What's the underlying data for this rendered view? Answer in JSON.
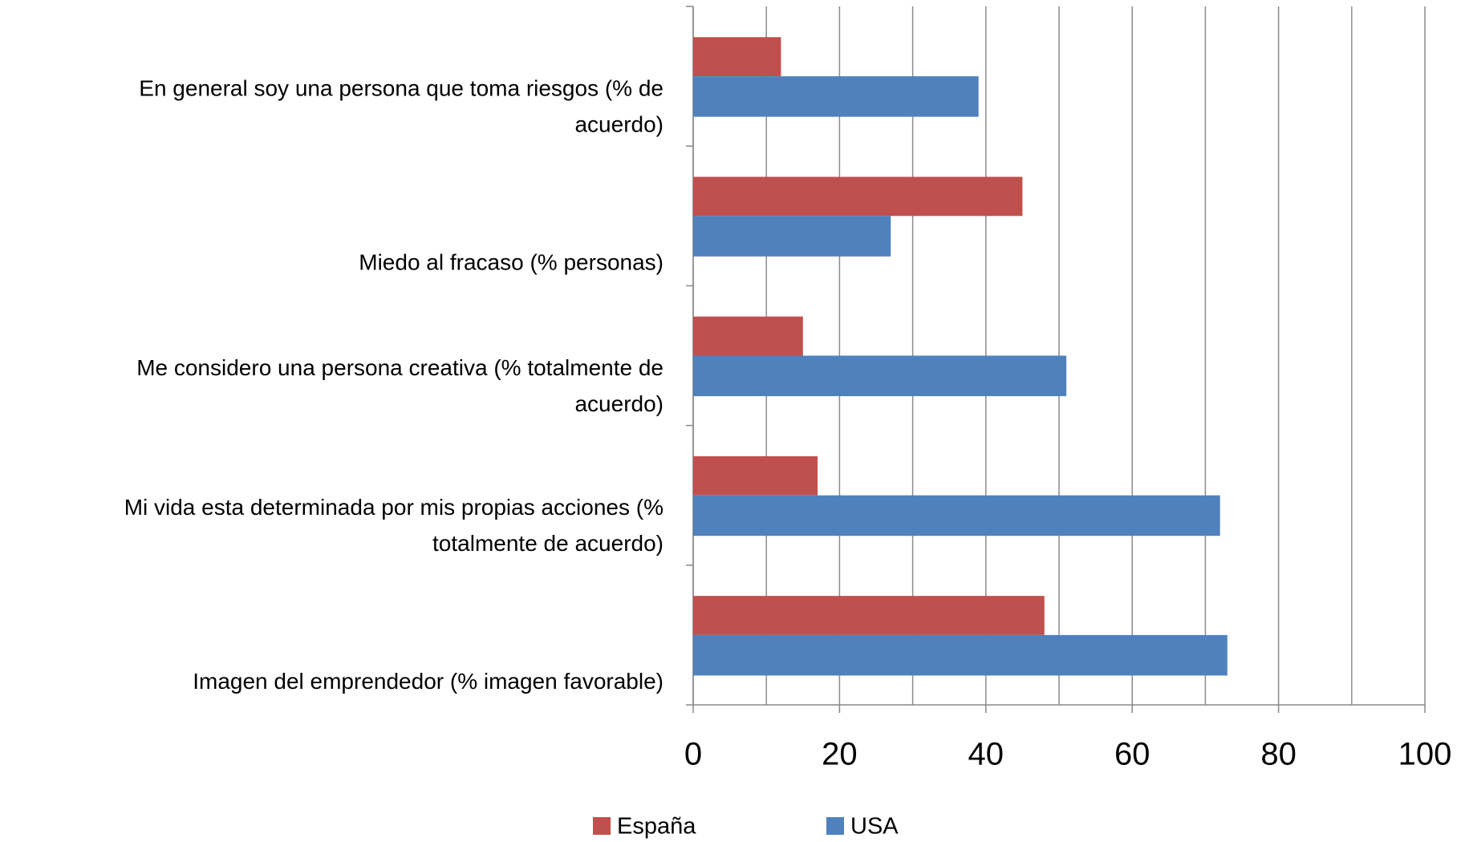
{
  "chart_data": {
    "type": "hbar",
    "categories": [
      "En general soy una persona que toma riesgos (% de acuerdo)",
      "Miedo al fracaso (% personas)",
      "Me considero una persona creativa (% totalmente de acuerdo)",
      "Mi vida esta determinada por mis propias acciones (% totalmente de acuerdo)",
      "Imagen del emprendedor (% imagen favorable)"
    ],
    "series": [
      {
        "name": "España",
        "color": "#c0504d",
        "values": [
          12,
          45,
          15,
          17,
          48
        ]
      },
      {
        "name": "USA",
        "color": "#4f81bd",
        "values": [
          39,
          27,
          51,
          72,
          73
        ]
      }
    ],
    "xlim": [
      0,
      100
    ],
    "xticks": [
      0,
      20,
      40,
      60,
      80,
      100
    ],
    "minor_gridlines": [
      10,
      30,
      50,
      70,
      90
    ],
    "grid": true,
    "legend": "bottom"
  }
}
